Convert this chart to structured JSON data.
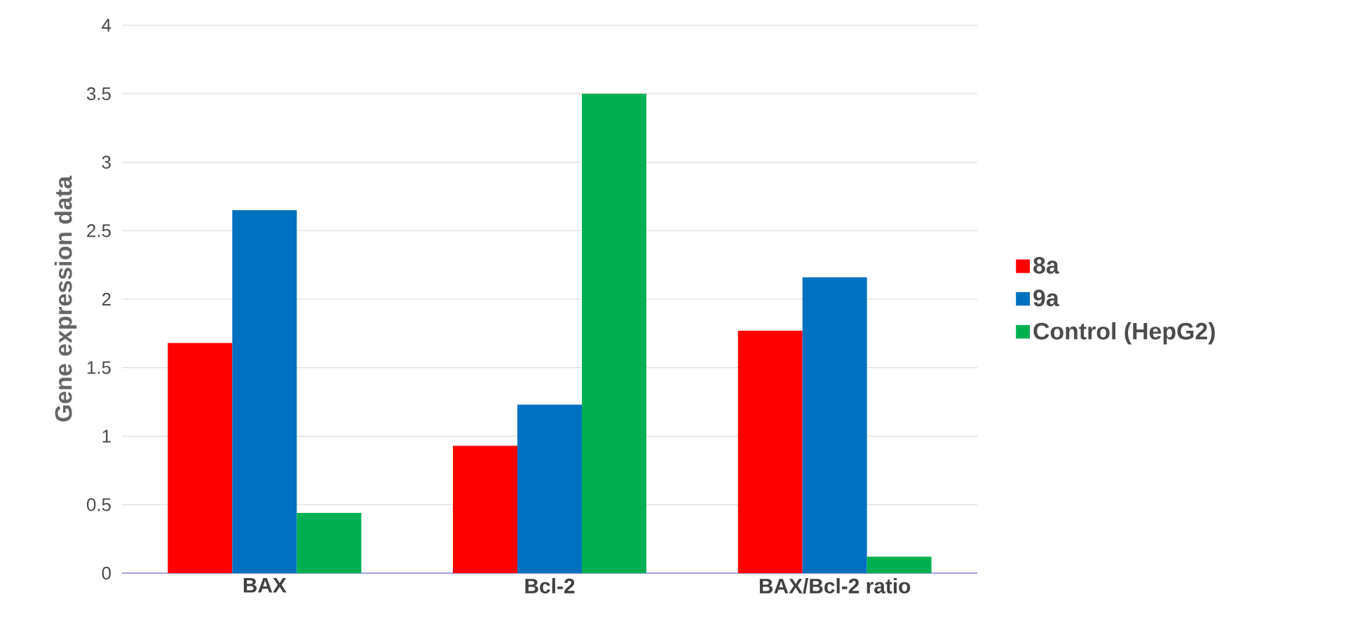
{
  "chart_data": {
    "type": "bar",
    "ylabel": "Gene expression data",
    "categories": [
      "BAX",
      "Bcl-2",
      "BAX/Bcl-2 ratio"
    ],
    "series": [
      {
        "name": "8a",
        "color": "#ff0000",
        "values": [
          1.68,
          0.93,
          1.77
        ]
      },
      {
        "name": "9a",
        "color": "#0070c0",
        "values": [
          2.65,
          1.23,
          2.16
        ]
      },
      {
        "name": "Control (HepG2)",
        "color": "#00b050",
        "values": [
          0.44,
          3.5,
          0.12
        ]
      }
    ],
    "ylim": [
      0,
      4
    ],
    "yticks": [
      0,
      0.5,
      1,
      1.5,
      2,
      2.5,
      3,
      3.5,
      4
    ],
    "grid": "y",
    "legend": "right"
  }
}
